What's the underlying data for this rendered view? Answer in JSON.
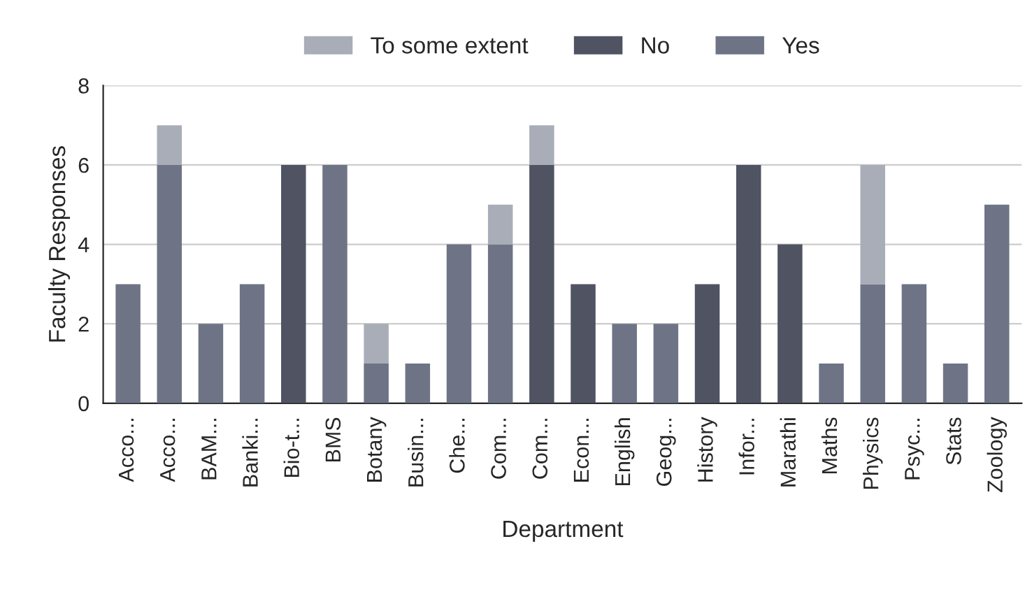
{
  "chart_data": {
    "type": "bar",
    "stacked": true,
    "xlabel": "Department",
    "ylabel": "Faculty Responses",
    "categories": [
      "Acco...",
      "Acco...",
      "BAM...",
      "Banki...",
      "Bio-t...",
      "BMS",
      "Botany",
      "Busin...",
      "Che...",
      "Com...",
      "Com...",
      "Econ...",
      "English",
      "Geog...",
      "History",
      "Infor...",
      "Marathi",
      "Maths",
      "Physics",
      "Psyc...",
      "Stats",
      "Zoology"
    ],
    "series": [
      {
        "name": "Yes",
        "color": "#6e7486",
        "values": [
          3,
          6,
          2,
          3,
          0,
          6,
          1,
          1,
          4,
          4,
          0,
          0,
          2,
          2,
          0,
          0,
          0,
          1,
          3,
          3,
          1,
          5
        ]
      },
      {
        "name": "No",
        "color": "#4f5362",
        "values": [
          0,
          0,
          0,
          0,
          6,
          0,
          0,
          0,
          0,
          0,
          6,
          3,
          0,
          0,
          3,
          6,
          4,
          0,
          0,
          0,
          0,
          0
        ]
      },
      {
        "name": "To some extent",
        "color": "#a9adb8",
        "values": [
          0,
          1,
          0,
          0,
          0,
          0,
          1,
          0,
          0,
          1,
          1,
          0,
          0,
          0,
          0,
          0,
          0,
          0,
          3,
          0,
          0,
          0
        ]
      }
    ],
    "ylim": [
      0,
      8
    ],
    "yticks": [
      0,
      2,
      4,
      6,
      8
    ],
    "grid": "y",
    "legend": "top"
  }
}
